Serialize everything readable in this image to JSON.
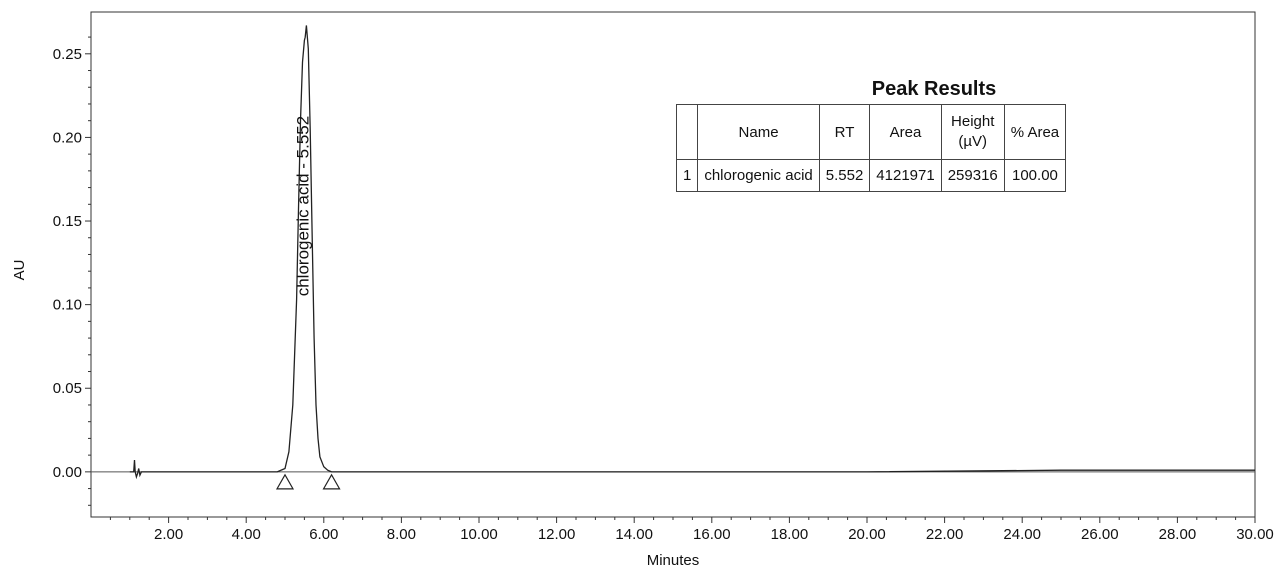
{
  "chart_data": {
    "type": "line",
    "xlabel": "Minutes",
    "ylabel": "AU",
    "xlim": [
      0,
      30
    ],
    "ylim": [
      -0.027,
      0.275
    ],
    "x_ticks": [
      "2.00",
      "4.00",
      "6.00",
      "8.00",
      "10.00",
      "12.00",
      "14.00",
      "16.00",
      "18.00",
      "20.00",
      "22.00",
      "24.00",
      "26.00",
      "28.00",
      "30.00"
    ],
    "x_tick_values": [
      2,
      4,
      6,
      8,
      10,
      12,
      14,
      16,
      18,
      20,
      22,
      24,
      26,
      28,
      30
    ],
    "y_ticks": [
      "0.00",
      "0.05",
      "0.10",
      "0.15",
      "0.20",
      "0.25"
    ],
    "y_tick_values": [
      0,
      0.05,
      0.1,
      0.15,
      0.2,
      0.25
    ],
    "series": [
      {
        "x": [
          1.0,
          1.1,
          1.12,
          1.14,
          1.17,
          1.2,
          1.23,
          1.26,
          1.3,
          1.5,
          4.0,
          4.8,
          5.0,
          5.1,
          5.2,
          5.3,
          5.35,
          5.4,
          5.45,
          5.5,
          5.52,
          5.552,
          5.6,
          5.65,
          5.7,
          5.75,
          5.8,
          5.85,
          5.9,
          6.0,
          6.1,
          6.2,
          6.4,
          7.0,
          10.0,
          15.0,
          20.0,
          25.0,
          30.0
        ],
        "y": [
          0.0,
          0.0,
          0.007,
          0.0,
          -0.003,
          -0.001,
          0.002,
          -0.002,
          0.0,
          0.0,
          0.0,
          0.0,
          0.002,
          0.012,
          0.04,
          0.103,
          0.16,
          0.21,
          0.245,
          0.258,
          0.26,
          0.267,
          0.253,
          0.205,
          0.14,
          0.08,
          0.04,
          0.02,
          0.009,
          0.003,
          0.001,
          0.0,
          0.0,
          0.0,
          0.0,
          0.0,
          0.0,
          0.001,
          0.001
        ]
      }
    ],
    "peak_annotation": {
      "text": "chlorogenic acid - 5.552",
      "x": 5.552
    },
    "integration_markers": [
      5.0,
      6.2
    ],
    "peak_results": {
      "title": "Peak Results",
      "columns": [
        "",
        "Name",
        "RT",
        "Area",
        "Height\n(µV)",
        "% Area"
      ],
      "rows": [
        [
          "1",
          "chlorogenic acid",
          "5.552",
          "4121971",
          "259316",
          "100.00"
        ]
      ]
    }
  }
}
